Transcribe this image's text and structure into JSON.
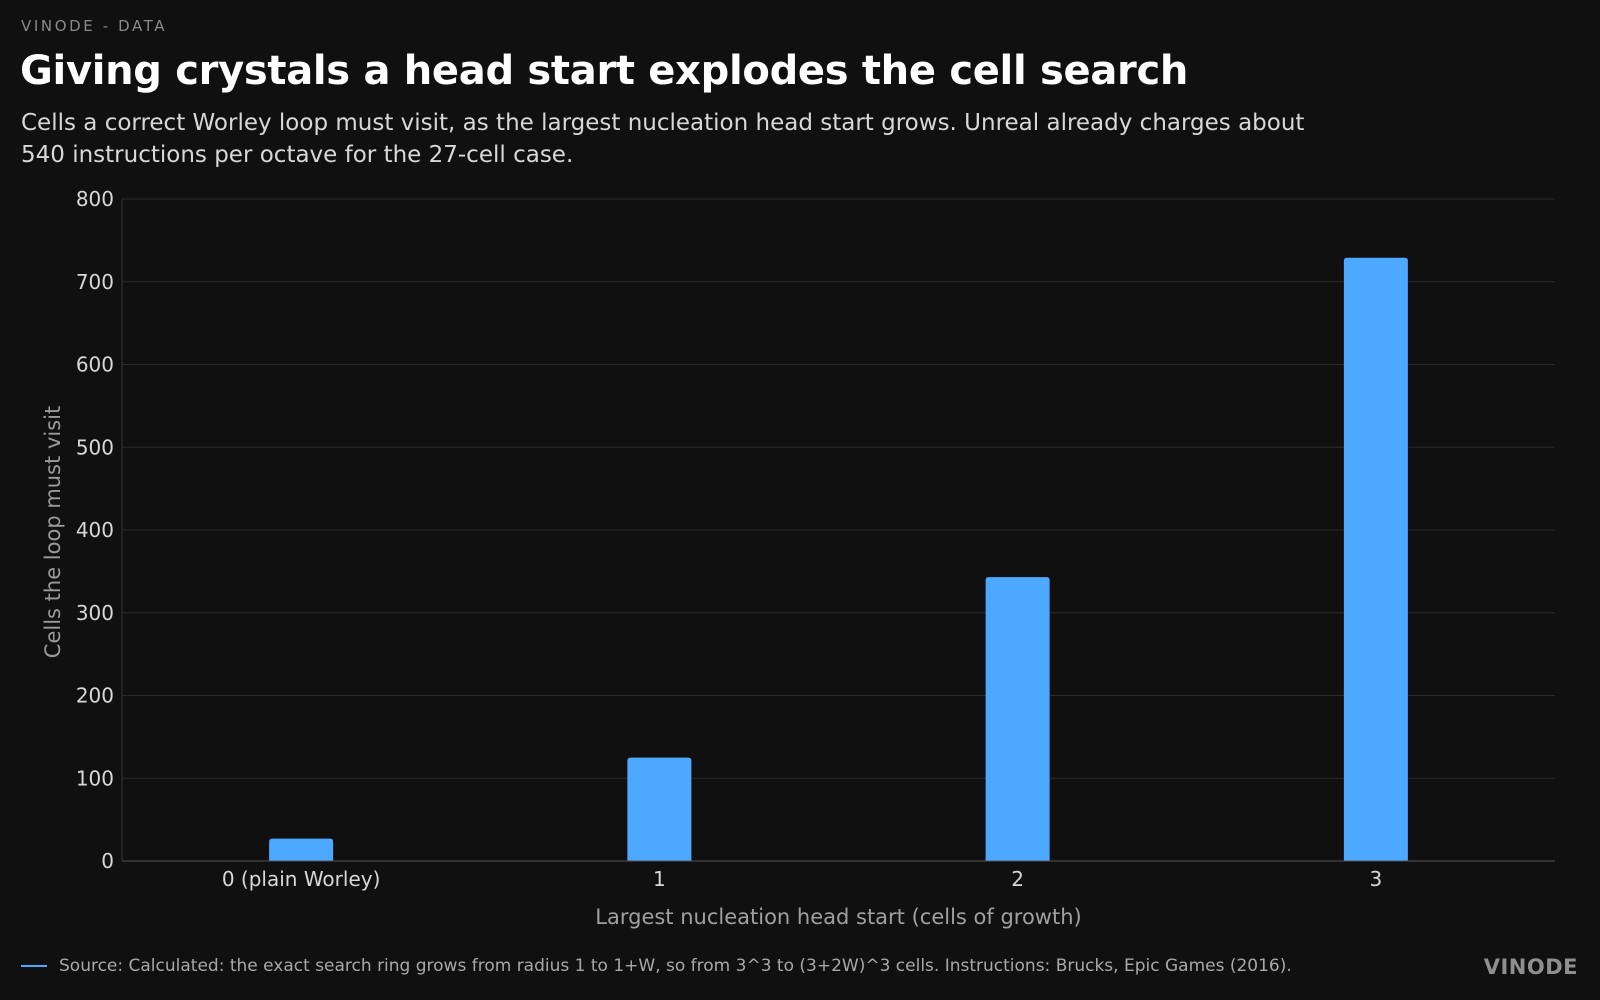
{
  "header": {
    "kicker": "VINODE - DATA",
    "title": "Giving crystals a head start explodes the cell search",
    "subtitle": "Cells a correct Worley loop must visit, as the largest nucleation head start grows. Unreal already charges about 540 instructions per octave for the 27-cell case."
  },
  "footer": {
    "source": "Source: Calculated: the exact search ring grows from radius 1 to 1+W, so from 3^3 to (3+2W)^3 cells. Instructions: Brucks, Epic Games (2016).",
    "brand": "VINODE"
  },
  "colors": {
    "background": "#101010",
    "bar": "#4da8ff",
    "grid": "#2a2a2a"
  },
  "chart_data": {
    "type": "bar",
    "title": "Giving crystals a head start explodes the cell search",
    "xlabel": "Largest nucleation head start (cells of growth)",
    "ylabel": "Cells the loop must visit",
    "categories": [
      "0 (plain Worley)",
      "1",
      "2",
      "3"
    ],
    "values": [
      27,
      125,
      343,
      729
    ],
    "ylim": [
      0,
      800
    ],
    "yticks": [
      0,
      100,
      200,
      300,
      400,
      500,
      600,
      700,
      800
    ],
    "grid": "horizontal",
    "legend": "bottom-left"
  }
}
